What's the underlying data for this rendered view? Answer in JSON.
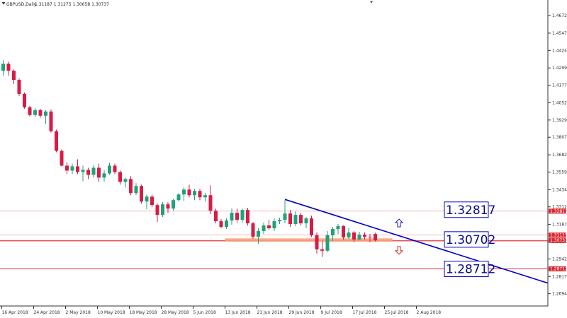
{
  "header": {
    "symbol": "GBPUSD,Daily",
    "ohlc": "1.31187 1.31275 1.30658 1.30737"
  },
  "colors": {
    "bull": "#21a179",
    "bear": "#d81b45",
    "trendline": "#0000cc",
    "level_line": "#d9272e",
    "level_faint": "#f2a0a0",
    "zone": "#f7a07a",
    "big_label_border": "#0000cc",
    "axis": "#333333"
  },
  "chart_data": {
    "type": "candlestick",
    "title": "GBPUSD,Daily",
    "x_tick_labels": [
      "16 Apr 2018",
      "24 Apr 2018",
      "2 May 2018",
      "10 May 2018",
      "18 May 2018",
      "28 May 2018",
      "5 Jun 2018",
      "13 Jun 2018",
      "21 Jun 2018",
      "29 Jun 2018",
      "9 Jul 2018",
      "17 Jul 2018",
      "25 Jul 2018",
      "2 Aug 2018"
    ],
    "y_tick_labels": [
      "1.46720",
      "1.45470",
      "1.44245",
      "1.42995",
      "1.41770",
      "1.40520",
      "1.39295",
      "1.38070",
      "1.36820",
      "1.35595",
      "1.34345",
      "1.33120",
      "1.31870",
      "1.30645",
      "1.29420",
      "1.28170",
      "1.26945"
    ],
    "ylim": [
      1.26425,
      1.47225
    ],
    "candles": [
      [
        1.428,
        1.4355,
        1.4245,
        1.433
      ],
      [
        1.433,
        1.4345,
        1.4245,
        1.428
      ],
      [
        1.428,
        1.429,
        1.4185,
        1.4215
      ],
      [
        1.4215,
        1.4225,
        1.41,
        1.4115
      ],
      [
        1.4115,
        1.4125,
        1.401,
        1.402
      ],
      [
        1.402,
        1.403,
        1.3955,
        1.3965
      ],
      [
        1.3965,
        1.4015,
        1.395,
        1.4
      ],
      [
        1.4,
        1.401,
        1.3945,
        1.396
      ],
      [
        1.396,
        1.4,
        1.39,
        1.399
      ],
      [
        1.399,
        1.4005,
        1.384,
        1.385
      ],
      [
        1.385,
        1.386,
        1.37,
        1.371
      ],
      [
        1.371,
        1.372,
        1.36,
        1.3605
      ],
      [
        1.3605,
        1.363,
        1.3545,
        1.357
      ],
      [
        1.357,
        1.362,
        1.3545,
        1.36
      ],
      [
        1.36,
        1.365,
        1.3545,
        1.356
      ],
      [
        1.356,
        1.3605,
        1.3495,
        1.3575
      ],
      [
        1.3575,
        1.359,
        1.351,
        1.354
      ],
      [
        1.354,
        1.361,
        1.352,
        1.359
      ],
      [
        1.359,
        1.362,
        1.349,
        1.352
      ],
      [
        1.352,
        1.3575,
        1.349,
        1.355
      ],
      [
        1.355,
        1.3625,
        1.354,
        1.3605
      ],
      [
        1.3605,
        1.362,
        1.3545,
        1.356
      ],
      [
        1.356,
        1.357,
        1.347,
        1.349
      ],
      [
        1.349,
        1.352,
        1.345,
        1.351
      ],
      [
        1.351,
        1.353,
        1.3395,
        1.341
      ],
      [
        1.341,
        1.348,
        1.3395,
        1.346
      ],
      [
        1.346,
        1.347,
        1.3335,
        1.335
      ],
      [
        1.335,
        1.34,
        1.3295,
        1.3385
      ],
      [
        1.3385,
        1.34,
        1.331,
        1.3325
      ],
      [
        1.3325,
        1.3335,
        1.3205,
        1.3255
      ],
      [
        1.3255,
        1.3345,
        1.324,
        1.333
      ],
      [
        1.333,
        1.3345,
        1.327,
        1.33
      ],
      [
        1.33,
        1.337,
        1.3285,
        1.336
      ],
      [
        1.336,
        1.341,
        1.335,
        1.34
      ],
      [
        1.34,
        1.345,
        1.3355,
        1.3435
      ],
      [
        1.3435,
        1.347,
        1.338,
        1.3395
      ],
      [
        1.3395,
        1.344,
        1.336,
        1.3425
      ],
      [
        1.3425,
        1.344,
        1.336,
        1.338
      ],
      [
        1.338,
        1.341,
        1.335,
        1.3395
      ],
      [
        1.3395,
        1.3465,
        1.326,
        1.3285
      ],
      [
        1.3285,
        1.33,
        1.3195,
        1.321
      ],
      [
        1.321,
        1.3225,
        1.316,
        1.317
      ],
      [
        1.317,
        1.323,
        1.3155,
        1.3215
      ],
      [
        1.3215,
        1.33,
        1.3185,
        1.327
      ],
      [
        1.327,
        1.33,
        1.32,
        1.322
      ],
      [
        1.322,
        1.33,
        1.32,
        1.329
      ],
      [
        1.329,
        1.3305,
        1.318,
        1.3195
      ],
      [
        1.3195,
        1.3205,
        1.3085,
        1.31
      ],
      [
        1.31,
        1.316,
        1.305,
        1.314
      ],
      [
        1.314,
        1.32,
        1.312,
        1.318
      ],
      [
        1.318,
        1.322,
        1.315,
        1.316
      ],
      [
        1.316,
        1.323,
        1.314,
        1.321
      ],
      [
        1.321,
        1.3235,
        1.319,
        1.322
      ],
      [
        1.322,
        1.336,
        1.3195,
        1.3265
      ],
      [
        1.3265,
        1.329,
        1.317,
        1.319
      ],
      [
        1.319,
        1.328,
        1.3175,
        1.3255
      ],
      [
        1.3255,
        1.327,
        1.318,
        1.3195
      ],
      [
        1.3195,
        1.324,
        1.316,
        1.323
      ],
      [
        1.323,
        1.325,
        1.31,
        1.311
      ],
      [
        1.311,
        1.313,
        1.298,
        1.301
      ],
      [
        1.301,
        1.307,
        1.2955,
        1.3
      ],
      [
        1.3,
        1.314,
        1.299,
        1.311
      ],
      [
        1.311,
        1.317,
        1.307,
        1.3155
      ],
      [
        1.3155,
        1.319,
        1.312,
        1.3175
      ],
      [
        1.3175,
        1.318,
        1.308,
        1.3095
      ],
      [
        1.3095,
        1.316,
        1.3085,
        1.313
      ],
      [
        1.313,
        1.314,
        1.306,
        1.308
      ],
      [
        1.308,
        1.3135,
        1.3075,
        1.3115
      ],
      [
        1.3115,
        1.313,
        1.308,
        1.31
      ],
      [
        1.31,
        1.312,
        1.306,
        1.3095
      ],
      [
        1.3119,
        1.3128,
        1.3066,
        1.3074
      ]
    ],
    "trendline": {
      "from": [
        "9 Jul 2018",
        1.3365
      ],
      "to": [
        "beyond 2 Aug 2018",
        1.277
      ]
    },
    "levels": [
      {
        "value": 1.32817,
        "axis_label": "1.32817",
        "box_label": "1.32817",
        "style": "faint"
      },
      {
        "value": 1.31115,
        "axis_label": "1.31115",
        "style": "faint"
      },
      {
        "value": 1.30737,
        "axis_label": "1.30737",
        "style": "faint"
      },
      {
        "value": 1.30702,
        "box_label": "1.30702",
        "style": "solid"
      },
      {
        "value": 1.28712,
        "axis_label": "1.28712",
        "box_label": "1.28712",
        "style": "solid"
      }
    ],
    "zone": {
      "from": 1.3088,
      "to": 1.3065
    },
    "arrows": [
      {
        "direction": "up",
        "color": "#1a1aa8"
      },
      {
        "direction": "down",
        "color": "#d9272e"
      }
    ]
  }
}
